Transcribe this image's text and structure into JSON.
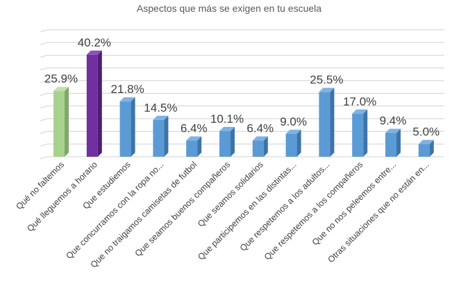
{
  "chart_data": {
    "type": "bar",
    "title": "Aspectos que más se exigen en tu escuela",
    "categories": [
      "Qué no faltemos",
      "Qué lleguemos a horario",
      "Que estudiemos",
      "Que concurramos con la ropa no...",
      "Que no traigamos camisetas de futbol",
      "Que seamos buenos compañeros",
      "Que seamos solidarios",
      "Que participemos en las distintas...",
      "Que respetemos a los adultos...",
      "Que respetemos a los compañeros",
      "Que no nos peleemos entre...",
      "Otras situaciones que no están en..."
    ],
    "values": [
      25.9,
      40.2,
      21.8,
      14.5,
      6.4,
      10.1,
      6.4,
      9.0,
      25.5,
      17.0,
      9.4,
      5.0
    ],
    "data_labels": [
      "25.9%",
      "40.2%",
      "21.8%",
      "14.5%",
      "6.4%",
      "10.1%",
      "6.4%",
      "9.0%",
      "25.5%",
      "17.0%",
      "9.4%",
      "5.0%"
    ],
    "ylim": [
      0,
      50
    ],
    "grid": true,
    "legend": "none",
    "bar_style": "3d",
    "colors": {
      "front": [
        "#a9d18e",
        "#7030a0",
        "#5b9bd5",
        "#5b9bd5",
        "#5b9bd5",
        "#5b9bd5",
        "#5b9bd5",
        "#5b9bd5",
        "#5b9bd5",
        "#5b9bd5",
        "#5b9bd5",
        "#5b9bd5"
      ],
      "side": [
        "#7fa869",
        "#4d1f70",
        "#3d74a8",
        "#3d74a8",
        "#3d74a8",
        "#3d74a8",
        "#3d74a8",
        "#3d74a8",
        "#3d74a8",
        "#3d74a8",
        "#3d74a8",
        "#3d74a8"
      ],
      "top": [
        "#c3e0ad",
        "#8e4fc0",
        "#7fb2e2",
        "#7fb2e2",
        "#7fb2e2",
        "#7fb2e2",
        "#7fb2e2",
        "#7fb2e2",
        "#7fb2e2",
        "#7fb2e2",
        "#7fb2e2",
        "#7fb2e2"
      ],
      "grid": "#d0d0d0",
      "text": "#404040"
    }
  }
}
